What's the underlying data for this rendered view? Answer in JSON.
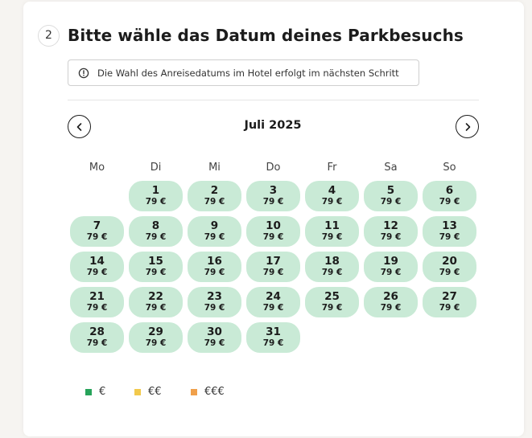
{
  "step": {
    "number": "2",
    "title": "Bitte wähle das Datum deines Parkbesuchs"
  },
  "info": {
    "icon": "info-circle-icon",
    "text": "Die Wahl des Anreisedatums im Hotel erfolgt im nächsten Schritt"
  },
  "calendar": {
    "month_label": "Juli 2025",
    "prev_icon": "chevron-left-icon",
    "next_icon": "chevron-right-icon",
    "weekdays": [
      "Mo",
      "Di",
      "Mi",
      "Do",
      "Fr",
      "Sa",
      "So"
    ],
    "first_weekday_index": 1,
    "day_color": "#c9ead6",
    "days": [
      {
        "day": "1",
        "price": "79 €"
      },
      {
        "day": "2",
        "price": "79 €"
      },
      {
        "day": "3",
        "price": "79 €"
      },
      {
        "day": "4",
        "price": "79 €"
      },
      {
        "day": "5",
        "price": "79 €"
      },
      {
        "day": "6",
        "price": "79 €"
      },
      {
        "day": "7",
        "price": "79 €"
      },
      {
        "day": "8",
        "price": "79 €"
      },
      {
        "day": "9",
        "price": "79 €"
      },
      {
        "day": "10",
        "price": "79 €"
      },
      {
        "day": "11",
        "price": "79 €"
      },
      {
        "day": "12",
        "price": "79 €"
      },
      {
        "day": "13",
        "price": "79 €"
      },
      {
        "day": "14",
        "price": "79 €"
      },
      {
        "day": "15",
        "price": "79 €"
      },
      {
        "day": "16",
        "price": "79 €"
      },
      {
        "day": "17",
        "price": "79 €"
      },
      {
        "day": "18",
        "price": "79 €"
      },
      {
        "day": "19",
        "price": "79 €"
      },
      {
        "day": "20",
        "price": "79 €"
      },
      {
        "day": "21",
        "price": "79 €"
      },
      {
        "day": "22",
        "price": "79 €"
      },
      {
        "day": "23",
        "price": "79 €"
      },
      {
        "day": "24",
        "price": "79 €"
      },
      {
        "day": "25",
        "price": "79 €"
      },
      {
        "day": "26",
        "price": "79 €"
      },
      {
        "day": "27",
        "price": "79 €"
      },
      {
        "day": "28",
        "price": "79 €"
      },
      {
        "day": "29",
        "price": "79 €"
      },
      {
        "day": "30",
        "price": "79 €"
      },
      {
        "day": "31",
        "price": "79 €"
      }
    ]
  },
  "legend": [
    {
      "label": "€",
      "color": "#27a35a"
    },
    {
      "label": "€€",
      "color": "#f2c94c"
    },
    {
      "label": "€€€",
      "color": "#f0a04b"
    }
  ]
}
